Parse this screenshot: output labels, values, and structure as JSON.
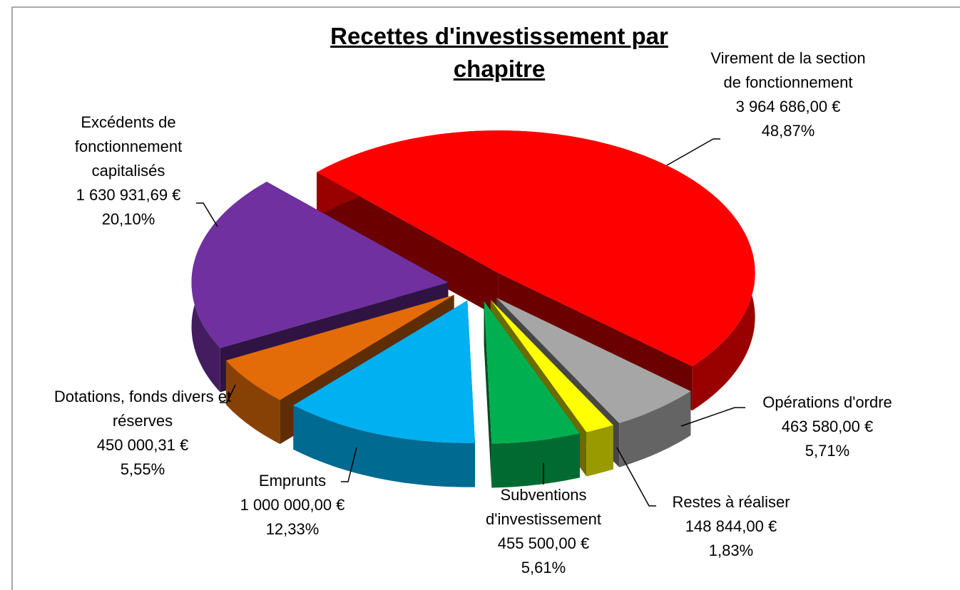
{
  "chart_data": {
    "type": "pie3d",
    "title": "Recettes d'investissement par chapitre",
    "categories": [
      "Virement de la section de fonctionnement",
      "Opérations d'ordre",
      "Restes à réaliser",
      "Subventions d'investissement",
      "Emprunts",
      "Dotations, fonds divers et réserves",
      "Excédents de fonctionnement capitalisés"
    ],
    "values": [
      3964686.0,
      463580.0,
      148844.0,
      455500.0,
      1000000.0,
      450000.31,
      1630931.69
    ],
    "value_labels": [
      "3 964 686,00 €",
      "463 580,00 €",
      "148 844,00 €",
      "455 500,00 €",
      "1 000 000,00 €",
      "450 000,31 €",
      "1 630 931,69 €"
    ],
    "percentages": [
      48.87,
      5.71,
      1.83,
      5.61,
      12.33,
      5.55,
      20.1
    ],
    "percentage_labels": [
      "48,87%",
      "5,71%",
      "1,83%",
      "5,61%",
      "12,33%",
      "5,55%",
      "20,10%"
    ],
    "colors": [
      "#ff0000",
      "#a6a6a6",
      "#ffff00",
      "#00b050",
      "#00b0f0",
      "#e36c09",
      "#7030a0"
    ]
  }
}
